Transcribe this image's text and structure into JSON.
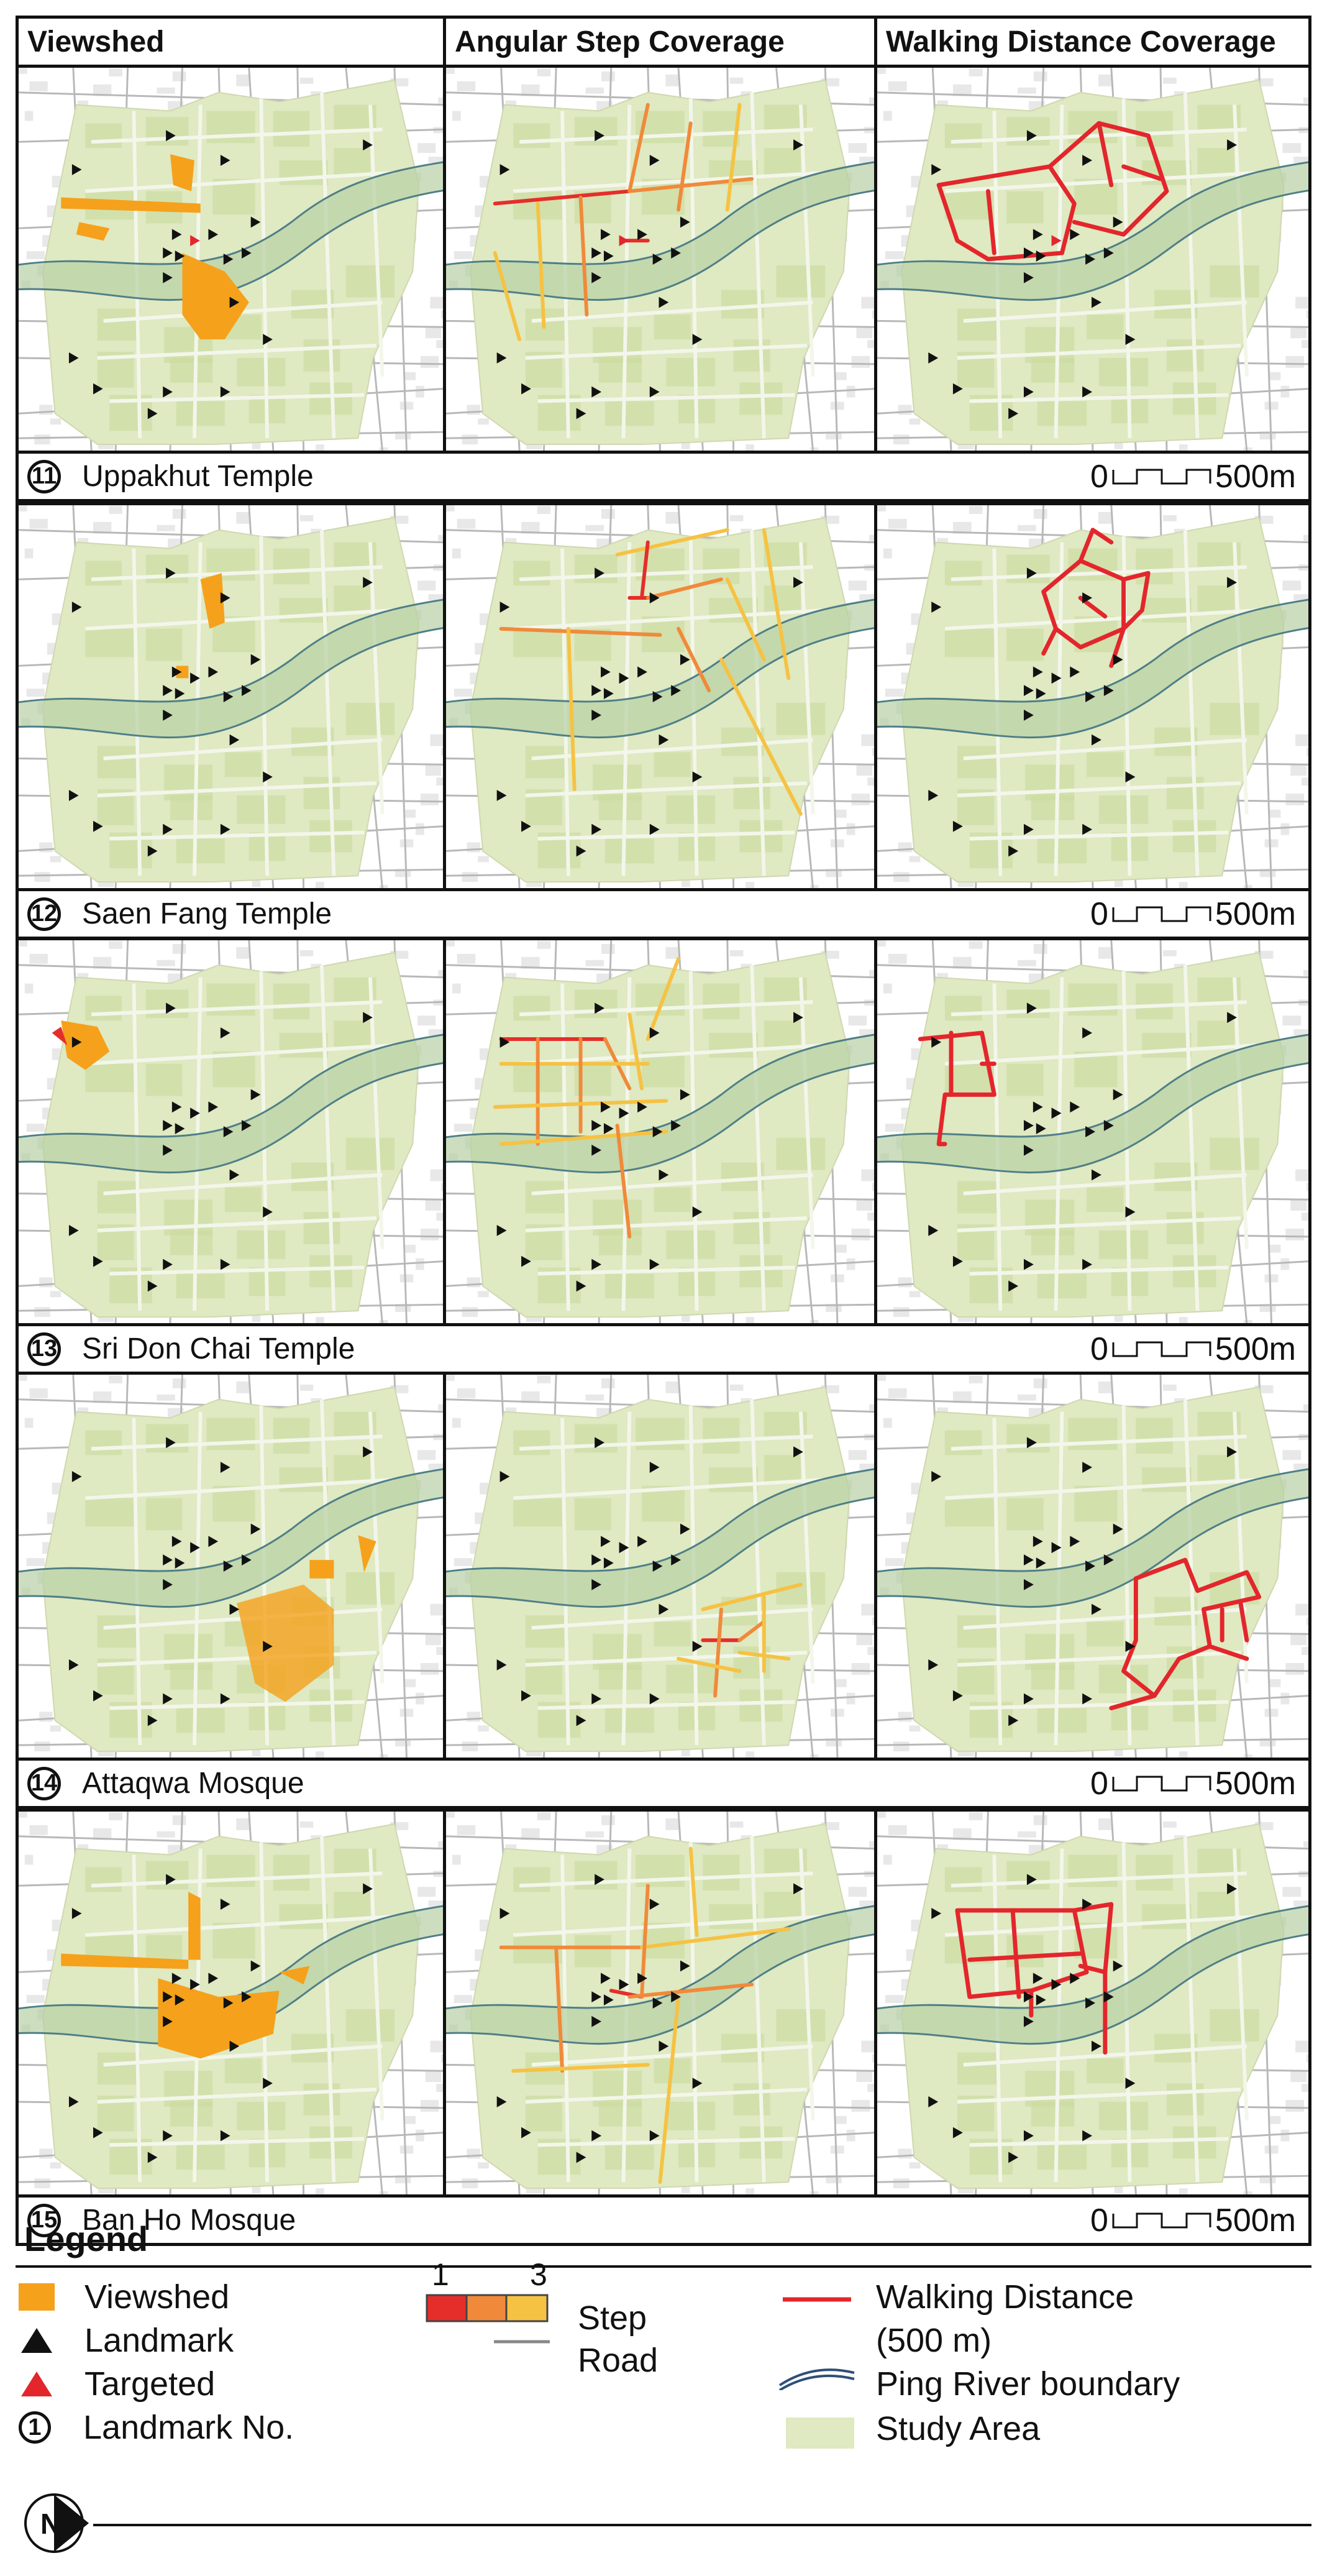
{
  "headers": [
    "Viewshed",
    "Angular Step Coverage",
    "Walking Distance Coverage"
  ],
  "colors": {
    "study_area": "#dfe9c2",
    "study_block": "#c9db9d",
    "river": "#b7d0a4",
    "river_line": "#4f7f87",
    "road": "#b8b8b8",
    "viewshed": "#f5a11b",
    "step1": "#e52e2a",
    "step2": "#f08a3a",
    "step3": "#f6c243",
    "walking": "#e3262c",
    "landmark": "#111111",
    "targeted": "#e3262c"
  },
  "rows": [
    {
      "number": "11",
      "name": "Uppakhut Temple",
      "scale_zero": "0",
      "scale_end": "500m"
    },
    {
      "number": "12",
      "name": "Saen Fang Temple",
      "scale_zero": "0",
      "scale_end": "500m"
    },
    {
      "number": "13",
      "name": "Sri Don Chai Temple",
      "scale_zero": "0",
      "scale_end": "500m"
    },
    {
      "number": "14",
      "name": "Attaqwa Mosque",
      "scale_zero": "0",
      "scale_end": "500m"
    },
    {
      "number": "15",
      "name": "Ban Ho Mosque",
      "scale_zero": "0",
      "scale_end": "500m"
    }
  ],
  "legend": {
    "title": "Legend",
    "viewshed": "Viewshed",
    "landmark": "Landmark",
    "targeted": "Targeted",
    "landmark_no": "Landmark No.",
    "landmark_no_symbol": "1",
    "step_min": "1",
    "step_max": "3",
    "step": "Step",
    "road": "Road",
    "walking_distance": "Walking Distance",
    "walking_distance_sub": "(500 m)",
    "ping_river": "Ping River boundary",
    "study_area": "Study Area"
  },
  "north": "N"
}
